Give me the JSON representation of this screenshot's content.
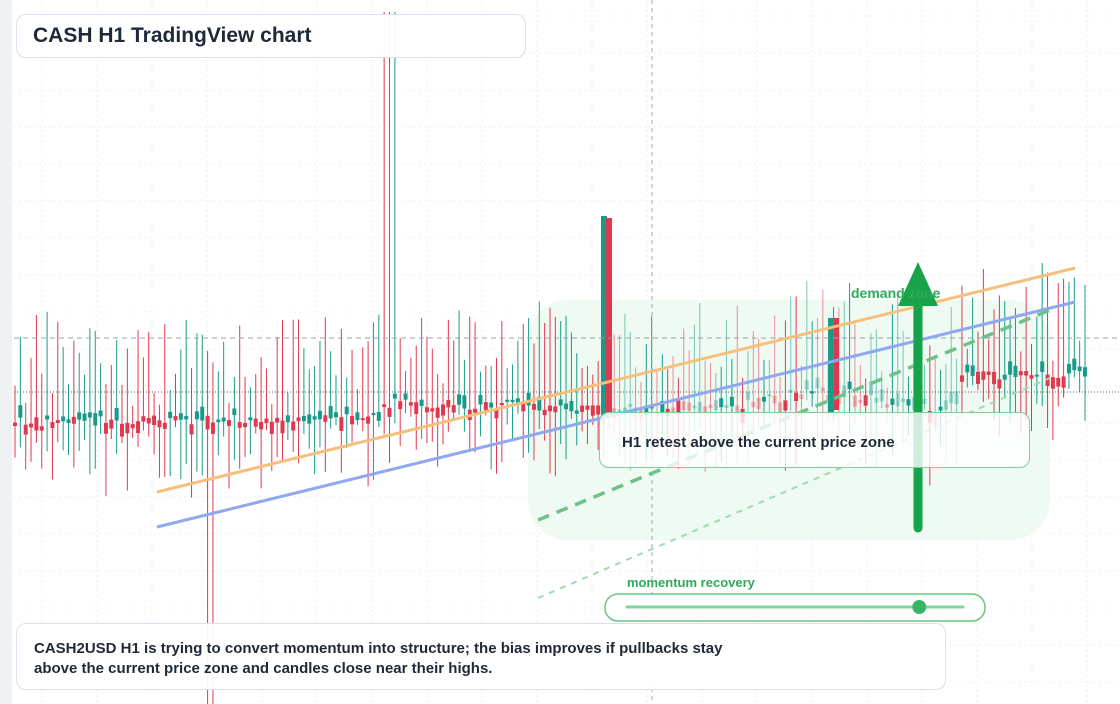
{
  "header": {
    "title": "CASH H1 TradingView chart"
  },
  "annotations": {
    "demand_zone": "demand zone",
    "retest_note": "H1 retest above the current price zone",
    "momentum": "momentum recovery"
  },
  "summary": {
    "text": "CASH2USD H1 is trying to convert momentum into structure; the bias improves if pullbacks stay above the current price zone and candles close near their highs."
  },
  "colors": {
    "up": "#1a9b8a",
    "down": "#e0394f",
    "trend_orange": "#f6c07a",
    "trend_blue": "#8fa8ee",
    "accent_green": "#16a34a",
    "zone_green": "#e9f8ee"
  },
  "chart_data": {
    "type": "candlestick",
    "symbol": "CASH2USD",
    "timeframe": "H1",
    "title": "CASH H1 TradingView chart",
    "indicator": {
      "label": "momentum recovery",
      "level": 0.87
    }
  }
}
